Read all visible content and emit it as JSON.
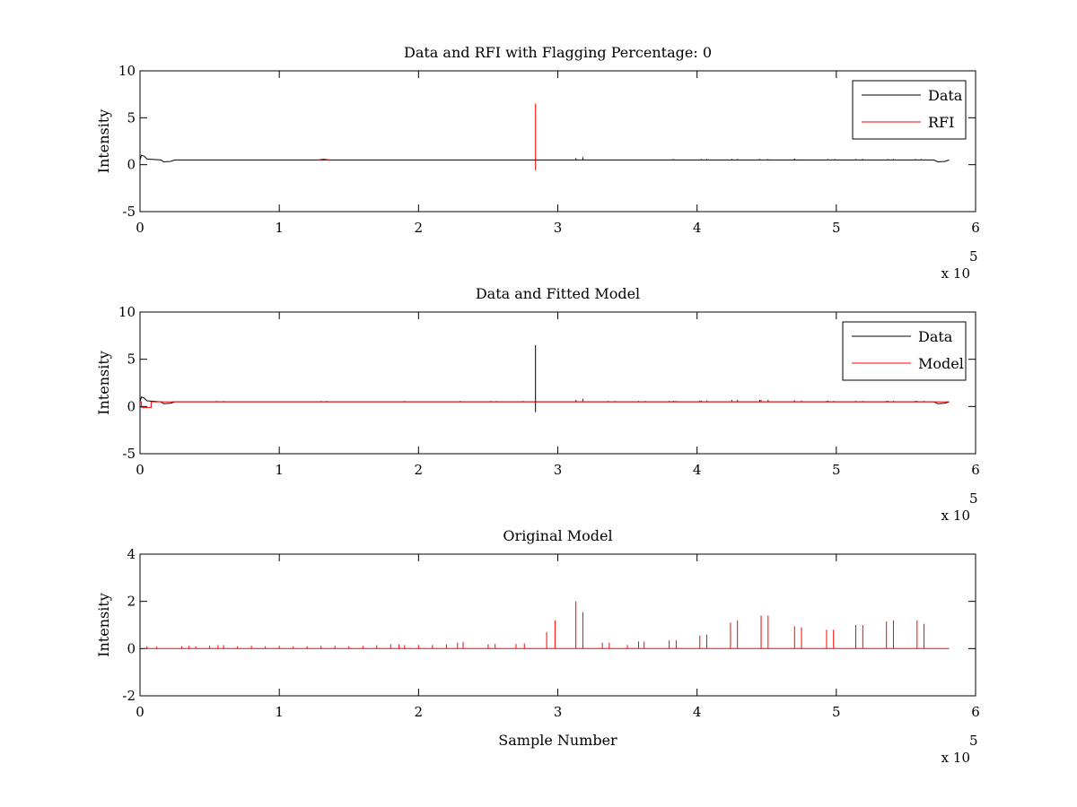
{
  "figure": {
    "background": "#ffffff"
  },
  "chart_data": [
    {
      "type": "line",
      "title": "Data and RFI with Flagging Percentage: 0",
      "xlabel": "",
      "ylabel": "Intensity",
      "xlim": [
        0,
        600000
      ],
      "ylim": [
        -5,
        10
      ],
      "xticks": [
        0,
        1,
        2,
        3,
        4,
        5,
        6
      ],
      "yticks": [
        -5,
        0,
        5,
        10
      ],
      "x_multiplier_label": "x 10",
      "x_multiplier_exponent": "5",
      "legend_position": "top-right",
      "grid": false,
      "series": [
        {
          "name": "Data",
          "color": "#000000",
          "baseline": 0.5,
          "points": [
            [
              0,
              0.5
            ],
            [
              1000,
              1.0
            ],
            [
              3000,
              0.9
            ],
            [
              5000,
              0.6
            ],
            [
              15000,
              0.5
            ],
            [
              17000,
              0.3
            ],
            [
              22000,
              0.35
            ],
            [
              25000,
              0.5
            ],
            [
              570000,
              0.5
            ],
            [
              573000,
              0.3
            ],
            [
              578000,
              0.35
            ],
            [
              581000,
              0.5
            ]
          ],
          "spikes": [
            [
              313000,
              0.7
            ],
            [
              318000,
              0.8
            ],
            [
              383000,
              0.6
            ],
            [
              403000,
              0.6
            ],
            [
              407000,
              0.6
            ],
            [
              425000,
              0.6
            ],
            [
              429000,
              0.6
            ],
            [
              445000,
              0.6
            ],
            [
              451000,
              0.6
            ],
            [
              470000,
              0.65
            ],
            [
              475000,
              0.55
            ],
            [
              494000,
              0.6
            ],
            [
              499000,
              0.6
            ],
            [
              514000,
              0.6
            ],
            [
              519000,
              0.6
            ],
            [
              537000,
              0.6
            ],
            [
              541000,
              0.6
            ],
            [
              557000,
              0.6
            ],
            [
              561000,
              0.6
            ]
          ]
        },
        {
          "name": "RFI",
          "color": "#ff0000",
          "baseline": 0.5,
          "points": [
            [
              128000,
              0.5
            ],
            [
              132000,
              0.6
            ],
            [
              136000,
              0.5
            ]
          ],
          "spikes": [
            [
              284000,
              6.5,
              -0.6
            ]
          ]
        }
      ]
    },
    {
      "type": "line",
      "title": "Data and Fitted Model",
      "xlabel": "",
      "ylabel": "Intensity",
      "xlim": [
        0,
        600000
      ],
      "ylim": [
        -5,
        10
      ],
      "xticks": [
        0,
        1,
        2,
        3,
        4,
        5,
        6
      ],
      "yticks": [
        -5,
        0,
        5,
        10
      ],
      "x_multiplier_label": "x 10",
      "x_multiplier_exponent": "5",
      "legend_position": "top-right",
      "grid": false,
      "series": [
        {
          "name": "Data",
          "color": "#000000",
          "baseline": 0.5,
          "points": [
            [
              0,
              0.5
            ],
            [
              1000,
              1.0
            ],
            [
              3000,
              0.9
            ],
            [
              5000,
              0.6
            ],
            [
              15000,
              0.5
            ],
            [
              17000,
              0.3
            ],
            [
              22000,
              0.35
            ],
            [
              25000,
              0.5
            ],
            [
              570000,
              0.5
            ],
            [
              573000,
              0.3
            ],
            [
              578000,
              0.35
            ],
            [
              581000,
              0.5
            ]
          ],
          "spikes": [
            [
              284000,
              6.5,
              -0.6
            ],
            [
              313000,
              0.7
            ],
            [
              318000,
              0.8
            ],
            [
              383000,
              0.6
            ],
            [
              403000,
              0.6
            ],
            [
              425000,
              0.7
            ],
            [
              429000,
              0.7
            ],
            [
              445000,
              0.7
            ],
            [
              451000,
              0.7
            ],
            [
              470000,
              0.65
            ],
            [
              494000,
              0.6
            ],
            [
              514000,
              0.6
            ],
            [
              537000,
              0.6
            ],
            [
              557000,
              0.6
            ]
          ]
        },
        {
          "name": "Model",
          "color": "#ff0000",
          "baseline": 0.5,
          "points": [
            [
              0,
              0.5
            ],
            [
              1000,
              0.5
            ],
            [
              1000,
              -0.1
            ],
            [
              8000,
              -0.1
            ],
            [
              8000,
              0.5
            ],
            [
              581000,
              0.5
            ]
          ],
          "spikes": [
            [
              30000,
              0.55
            ],
            [
              55000,
              0.6
            ],
            [
              60000,
              0.6
            ],
            [
              130000,
              0.6
            ],
            [
              134000,
              0.6
            ],
            [
              190000,
              0.6
            ],
            [
              230000,
              0.6
            ],
            [
              252000,
              0.6
            ],
            [
              256000,
              0.6
            ],
            [
              275000,
              0.6
            ],
            [
              313000,
              0.7
            ],
            [
              318000,
              0.75
            ],
            [
              336000,
              0.6
            ],
            [
              341000,
              0.6
            ],
            [
              358000,
              0.6
            ],
            [
              363000,
              0.6
            ],
            [
              380000,
              0.6
            ],
            [
              385000,
              0.6
            ],
            [
              402000,
              0.65
            ],
            [
              407000,
              0.65
            ],
            [
              425000,
              0.7
            ],
            [
              429000,
              0.7
            ],
            [
              446000,
              0.7
            ],
            [
              451000,
              0.7
            ],
            [
              470000,
              0.65
            ],
            [
              475000,
              0.65
            ],
            [
              493000,
              0.6
            ],
            [
              498000,
              0.6
            ],
            [
              514000,
              0.6
            ],
            [
              519000,
              0.6
            ],
            [
              536000,
              0.6
            ],
            [
              541000,
              0.6
            ],
            [
              558000,
              0.6
            ],
            [
              563000,
              0.6
            ]
          ]
        }
      ]
    },
    {
      "type": "line",
      "title": "Original Model",
      "xlabel": "Sample Number",
      "ylabel": "Intensity",
      "xlim": [
        0,
        600000
      ],
      "ylim": [
        -2,
        4
      ],
      "xticks": [
        0,
        1,
        2,
        3,
        4,
        5,
        6
      ],
      "yticks": [
        -2,
        0,
        2,
        4
      ],
      "x_multiplier_label": "x 10",
      "x_multiplier_exponent": "5",
      "legend_position": "none",
      "grid": false,
      "series": [
        {
          "color": "#ff0000",
          "baseline": 0,
          "points": [
            [
              3000,
              0
            ],
            [
              581000,
              0
            ]
          ],
          "spikes": [
            [
              5000,
              0.1
            ],
            [
              12000,
              0.08
            ],
            [
              30000,
              0.1
            ],
            [
              35000,
              0.12
            ],
            [
              40000,
              0.1
            ],
            [
              50000,
              0.12
            ],
            [
              56000,
              0.15
            ],
            [
              60000,
              0.15
            ],
            [
              70000,
              0.1
            ],
            [
              80000,
              0.12
            ],
            [
              90000,
              0.1
            ],
            [
              100000,
              0.12
            ],
            [
              110000,
              0.1
            ],
            [
              120000,
              0.1
            ],
            [
              130000,
              0.12
            ],
            [
              140000,
              0.12
            ],
            [
              150000,
              0.1
            ],
            [
              160000,
              0.12
            ],
            [
              170000,
              0.14
            ],
            [
              180000,
              0.18
            ],
            [
              186000,
              0.18
            ],
            [
              190000,
              0.15
            ],
            [
              200000,
              0.15
            ],
            [
              210000,
              0.15
            ],
            [
              220000,
              0.18
            ],
            [
              228000,
              0.25
            ],
            [
              232000,
              0.28
            ],
            [
              250000,
              0.18
            ],
            [
              255000,
              0.2
            ],
            [
              270000,
              0.2
            ],
            [
              276000,
              0.22
            ],
            [
              292000,
              0.7
            ],
            [
              298000,
              1.2
            ],
            [
              313000,
              2.0
            ],
            [
              318000,
              1.55
            ],
            [
              332000,
              0.25
            ],
            [
              337000,
              0.25
            ],
            [
              350000,
              0.15
            ],
            [
              358000,
              0.3
            ],
            [
              362000,
              0.3
            ],
            [
              380000,
              0.35
            ],
            [
              385000,
              0.35
            ],
            [
              402000,
              0.55
            ],
            [
              407000,
              0.6
            ],
            [
              424000,
              1.1
            ],
            [
              429000,
              1.2
            ],
            [
              446000,
              1.4
            ],
            [
              451000,
              1.4
            ],
            [
              470000,
              0.95
            ],
            [
              475000,
              0.9
            ],
            [
              493000,
              0.8
            ],
            [
              498000,
              0.8
            ],
            [
              514000,
              1.0
            ],
            [
              519000,
              1.0
            ],
            [
              536000,
              1.15
            ],
            [
              541000,
              1.2
            ],
            [
              558000,
              1.2
            ],
            [
              563000,
              1.05
            ]
          ]
        }
      ]
    }
  ]
}
